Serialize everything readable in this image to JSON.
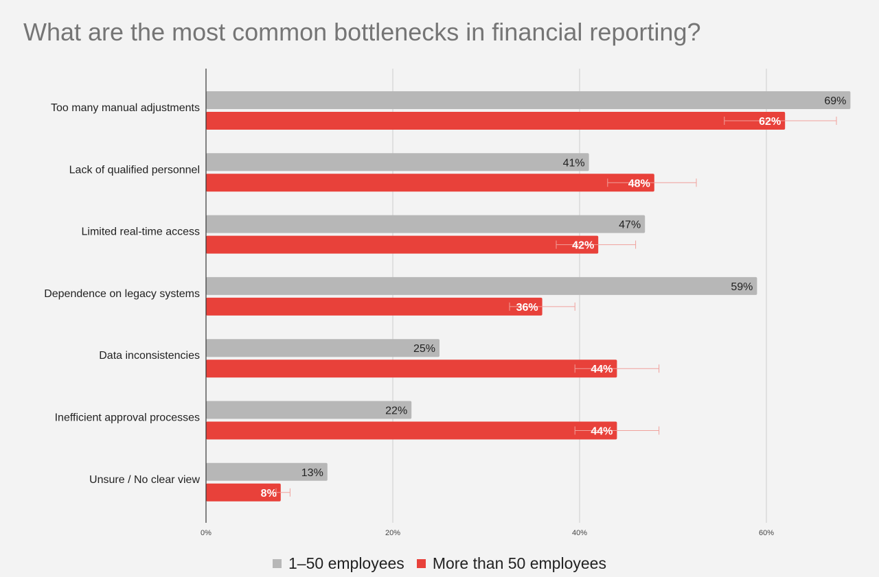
{
  "title": "What are the most common bottlenecks in financial reporting?",
  "colors": {
    "series1": "#b7b7b7",
    "series2": "#e8413a",
    "error_bar": "#f0a09b",
    "grid": "#cccccc",
    "axis": "#333333"
  },
  "chart_data": {
    "type": "bar",
    "orientation": "horizontal",
    "categories": [
      "Too many manual adjustments",
      "Lack of qualified personnel",
      "Limited real-time access",
      "Dependence on legacy systems",
      "Data inconsistencies",
      "Inefficient approval processes",
      "Unsure / No clear view"
    ],
    "series": [
      {
        "name": "1–50 employees",
        "values": [
          69,
          41,
          47,
          59,
          25,
          22,
          13
        ],
        "labels": [
          "69%",
          "41%",
          "47%",
          "59%",
          "25%",
          "22%",
          "13%"
        ]
      },
      {
        "name": "More than 50 employees",
        "values": [
          62,
          48,
          42,
          36,
          44,
          44,
          8
        ],
        "labels": [
          "62%",
          "48%",
          "42%",
          "36%",
          "44%",
          "44%",
          "8%"
        ],
        "error_low": [
          55.5,
          43,
          37.5,
          32.5,
          39.5,
          39.5,
          7.5
        ],
        "error_high": [
          67.5,
          52.5,
          46,
          39.5,
          48.5,
          48.5,
          9
        ]
      }
    ],
    "x_ticks": [
      0,
      20,
      40,
      60
    ],
    "x_tick_labels": [
      "0%",
      "20%",
      "40%",
      "60%"
    ],
    "xlim": [
      0,
      70
    ],
    "grid": true,
    "legend_position": "bottom"
  }
}
